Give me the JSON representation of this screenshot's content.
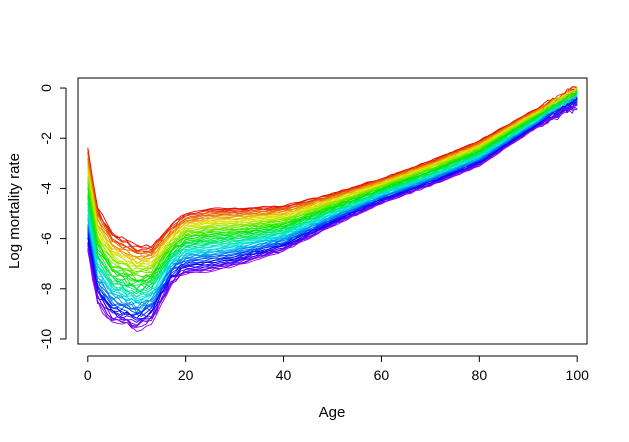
{
  "chart_data": {
    "type": "line",
    "title": "",
    "xlabel": "Age",
    "ylabel": "Log mortality rate",
    "xlim": [
      0,
      100
    ],
    "ylim": [
      -10,
      0
    ],
    "x_ticks": [
      "0",
      "20",
      "40",
      "60",
      "80",
      "100"
    ],
    "y_ticks": [
      "-10",
      "-8",
      "-6",
      "-4",
      "-2",
      "0"
    ],
    "grid": false,
    "legend": "none",
    "palette": "rainbow (red → orange → yellow → green → cyan → blue → violet, earliest to latest curve)",
    "n_series": 60,
    "x": [
      0,
      2,
      5,
      10,
      13,
      17,
      20,
      25,
      30,
      40,
      50,
      60,
      70,
      80,
      90,
      95,
      100
    ],
    "envelope": {
      "first_curve_red": [
        -2.4,
        -4.8,
        -5.8,
        -6.3,
        -6.3,
        -5.5,
        -5.0,
        -4.8,
        -4.8,
        -4.7,
        -4.2,
        -3.6,
        -2.9,
        -2.1,
        -1.0,
        -0.5,
        0.0
      ],
      "last_curve_violet": [
        -6.5,
        -8.6,
        -9.3,
        -9.6,
        -9.3,
        -7.8,
        -7.4,
        -7.3,
        -7.1,
        -6.5,
        -5.5,
        -4.6,
        -3.9,
        -3.1,
        -1.8,
        -1.2,
        -0.7
      ]
    }
  }
}
